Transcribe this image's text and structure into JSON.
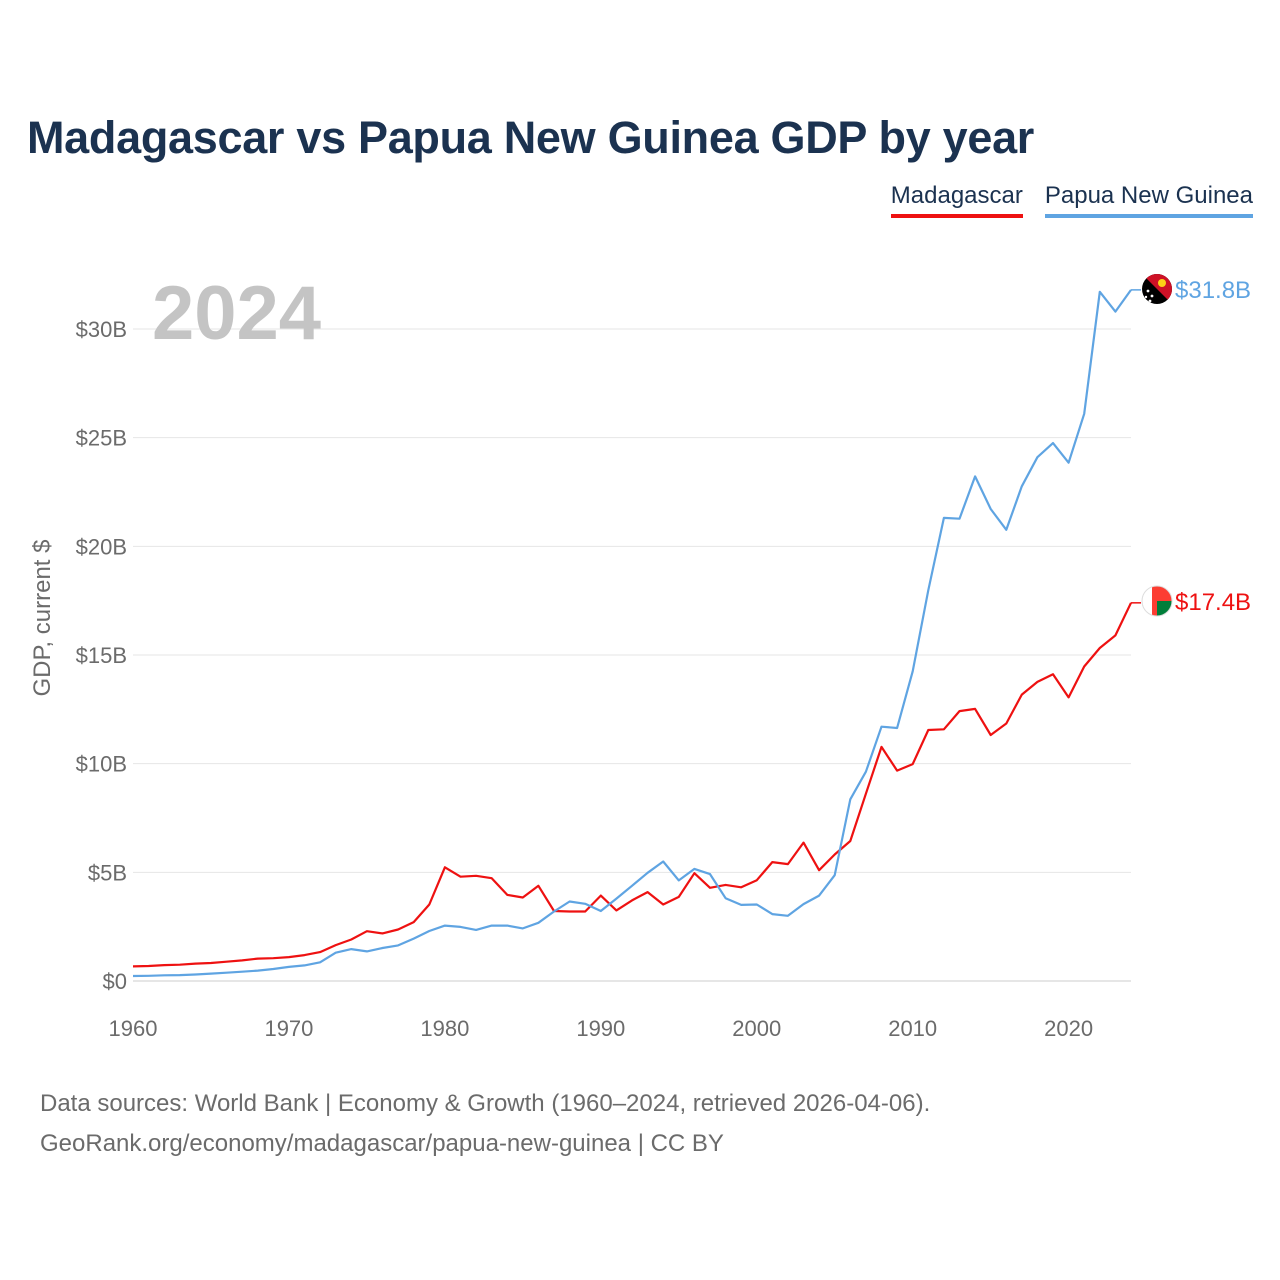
{
  "title": "Madagascar vs Papua New Guinea GDP by year",
  "legend": [
    {
      "label": "Madagascar",
      "color": "#ee1111"
    },
    {
      "label": "Papua New Guinea",
      "color": "#5fa4e2"
    }
  ],
  "source": {
    "line1": "Data sources: World Bank | Economy & Growth (1960–2024, retrieved 2026-04-06).",
    "line2": "GeoRank.org/economy/madagascar/papua-new-guinea | CC BY"
  },
  "chart_data": {
    "type": "line",
    "year_label": "2024",
    "ylabel": "GDP, current $",
    "xlabel": "",
    "xlim": [
      1960,
      2024
    ],
    "ylim": [
      0,
      33
    ],
    "xticks": [
      {
        "value": 1960,
        "label": "1960"
      },
      {
        "value": 1970,
        "label": "1970"
      },
      {
        "value": 1980,
        "label": "1980"
      },
      {
        "value": 1990,
        "label": "1990"
      },
      {
        "value": 2000,
        "label": "2000"
      },
      {
        "value": 2010,
        "label": "2010"
      },
      {
        "value": 2020,
        "label": "2020"
      }
    ],
    "yticks": [
      {
        "value": 0,
        "label": "$0"
      },
      {
        "value": 5,
        "label": "$5B"
      },
      {
        "value": 10,
        "label": "$10B"
      },
      {
        "value": 15,
        "label": "$15B"
      },
      {
        "value": 20,
        "label": "$20B"
      },
      {
        "value": 25,
        "label": "$25B"
      },
      {
        "value": 30,
        "label": "$30B"
      }
    ],
    "x_start": 1960,
    "unit": "billions of current US$",
    "series": [
      {
        "name": "Madagascar",
        "color": "#ee1111",
        "end_label": "$17.4B",
        "values": [
          0.67,
          0.69,
          0.73,
          0.75,
          0.8,
          0.83,
          0.89,
          0.95,
          1.03,
          1.05,
          1.1,
          1.19,
          1.33,
          1.65,
          1.91,
          2.29,
          2.19,
          2.37,
          2.71,
          3.52,
          5.23,
          4.8,
          4.84,
          4.73,
          3.96,
          3.84,
          4.38,
          3.22,
          3.2,
          3.2,
          3.93,
          3.25,
          3.71,
          4.09,
          3.52,
          3.87,
          4.96,
          4.29,
          4.42,
          4.31,
          4.64,
          5.47,
          5.38,
          6.37,
          5.1,
          5.82,
          6.44,
          8.62,
          10.77,
          9.68,
          9.98,
          11.55,
          11.58,
          12.42,
          12.52,
          11.32,
          11.85,
          13.18,
          13.76,
          14.11,
          13.05,
          14.47,
          15.32,
          15.9,
          17.4
        ]
      },
      {
        "name": "Papua New Guinea",
        "color": "#5fa4e2",
        "end_label": "$31.8B",
        "values": [
          0.23,
          0.24,
          0.26,
          0.27,
          0.3,
          0.34,
          0.38,
          0.43,
          0.48,
          0.55,
          0.65,
          0.72,
          0.86,
          1.3,
          1.47,
          1.36,
          1.52,
          1.64,
          1.95,
          2.3,
          2.55,
          2.49,
          2.35,
          2.55,
          2.55,
          2.42,
          2.68,
          3.2,
          3.66,
          3.55,
          3.22,
          3.79,
          4.38,
          4.98,
          5.5,
          4.63,
          5.16,
          4.92,
          3.81,
          3.5,
          3.52,
          3.08,
          3.0,
          3.54,
          3.93,
          4.87,
          8.36,
          9.63,
          11.7,
          11.64,
          14.25,
          17.98,
          21.31,
          21.27,
          23.22,
          21.72,
          20.76,
          22.76,
          24.1,
          24.75,
          23.85,
          26.1,
          31.71,
          30.8,
          31.8
        ]
      }
    ]
  }
}
